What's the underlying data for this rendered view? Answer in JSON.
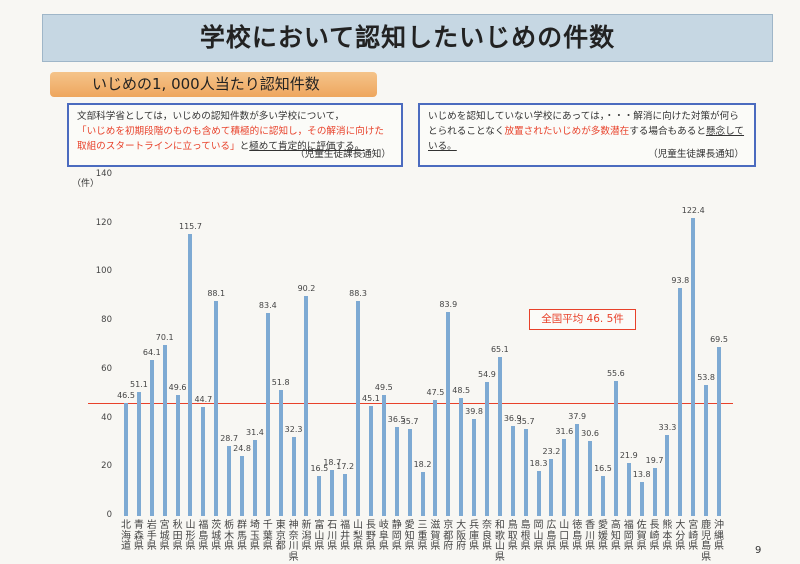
{
  "title": "学校において認知したいじめの件数",
  "subtitle": "いじめの1, 000人当たり認知件数",
  "note_left": {
    "text1": "文部科学省としては，いじめの認知件数が多い学校について，",
    "red": "「いじめを初期段階のものも含めて積極的に認知し，その解消に向けた取組のスタートラインに立っている」",
    "text2": "と",
    "underlined": "極めて肯定的に評価する。",
    "source": "（児童生徒課長通知）"
  },
  "note_right": {
    "text1": "いじめを認知していない学校にあっては，・・・解消に向けた対策が何らとられることなく",
    "red": "放置されたいじめが多数潜在",
    "text2": "する場合もあると",
    "underlined": "懸念している。",
    "source": "（児童生徒課長通知）"
  },
  "page_number": "9",
  "chart_data": {
    "type": "bar",
    "ylabel": "（件）",
    "ylim": [
      0,
      140
    ],
    "yticks": [
      "0",
      "20",
      "40",
      "60",
      "80",
      "100",
      "120",
      "140"
    ],
    "categories": [
      "北海道",
      "青森県",
      "岩手県",
      "宮城県",
      "秋田県",
      "山形県",
      "福島県",
      "茨城県",
      "栃木県",
      "群馬県",
      "埼玉県",
      "千葉県",
      "東京都",
      "神奈川県",
      "新潟県",
      "富山県",
      "石川県",
      "福井県",
      "山梨県",
      "長野県",
      "岐阜県",
      "静岡県",
      "愛知県",
      "三重県",
      "滋賀県",
      "京都府",
      "大阪府",
      "兵庫県",
      "奈良県",
      "和歌山県",
      "鳥取県",
      "島根県",
      "岡山県",
      "広島県",
      "山口県",
      "徳島県",
      "香川県",
      "愛媛県",
      "高知県",
      "福岡県",
      "佐賀県",
      "長崎県",
      "熊本県",
      "大分県",
      "宮崎県",
      "鹿児島県",
      "沖縄県"
    ],
    "values": [
      46.5,
      51.1,
      64.1,
      70.1,
      49.6,
      115.7,
      44.7,
      88.1,
      28.7,
      24.8,
      31.4,
      83.4,
      51.8,
      32.3,
      90.2,
      16.5,
      18.7,
      17.2,
      88.3,
      45.1,
      49.5,
      36.5,
      35.7,
      18.2,
      47.5,
      83.9,
      48.5,
      39.8,
      54.9,
      65.1,
      36.9,
      35.7,
      18.3,
      23.2,
      31.6,
      37.9,
      30.6,
      16.5,
      55.6,
      21.9,
      13.8,
      19.7,
      33.3,
      93.8,
      122.4,
      53.8,
      69.5
    ],
    "average": 46.5,
    "average_label": "全国平均 46. 5件",
    "colors": {
      "bar": "#7eaad3",
      "average_line": "#e8412a"
    }
  }
}
